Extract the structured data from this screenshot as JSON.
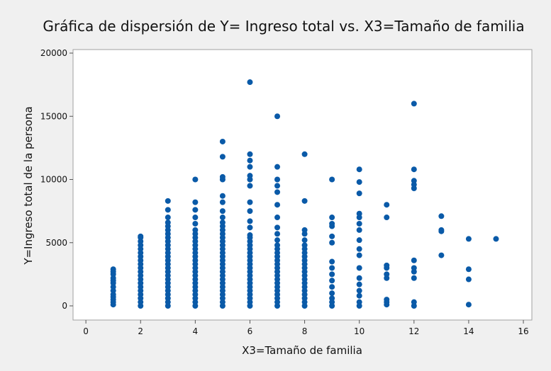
{
  "chart_data": {
    "type": "scatter",
    "title": "Gráfica de dispersión de Y= Ingreso total vs. X3=Tamaño de familia",
    "x_label": "X3=Tamaño de familia",
    "y_label": "Y=Ingreso total de la persona",
    "color": "#0a5aa8",
    "xlim": [
      -0.47,
      16.31
    ],
    "ylim": [
      -1120,
      20280
    ],
    "xticks": [
      0,
      2,
      4,
      6,
      8,
      10,
      12,
      14,
      16
    ],
    "yticks": [
      0,
      5000,
      10000,
      15000,
      20000
    ],
    "x": [
      1,
      1,
      1,
      1,
      1,
      1,
      1,
      1,
      1,
      1,
      1,
      1,
      1,
      2,
      2,
      2,
      2,
      2,
      2,
      2,
      2,
      2,
      2,
      2,
      2,
      2,
      2,
      2,
      2,
      2,
      2,
      2,
      2,
      3,
      3,
      3,
      3,
      3,
      3,
      3,
      3,
      3,
      3,
      3,
      3,
      3,
      3,
      3,
      3,
      3,
      3,
      3,
      3,
      3,
      3,
      3,
      3,
      3,
      3,
      4,
      4,
      4,
      4,
      4,
      4,
      4,
      4,
      4,
      4,
      4,
      4,
      4,
      4,
      4,
      4,
      4,
      4,
      4,
      4,
      4,
      4,
      4,
      4,
      4,
      4,
      5,
      5,
      5,
      5,
      5,
      5,
      5,
      5,
      5,
      5,
      5,
      5,
      5,
      5,
      5,
      5,
      5,
      5,
      5,
      5,
      5,
      5,
      5,
      5,
      5,
      5,
      5,
      5,
      5,
      5,
      5,
      6,
      6,
      6,
      6,
      6,
      6,
      6,
      6,
      6,
      6,
      6,
      6,
      6,
      6,
      6,
      6,
      6,
      6,
      6,
      6,
      6,
      6,
      6,
      6,
      6,
      6,
      6,
      6,
      6,
      6,
      6,
      7,
      7,
      7,
      7,
      7,
      7,
      7,
      7,
      7,
      7,
      7,
      7,
      7,
      7,
      7,
      7,
      7,
      7,
      7,
      7,
      7,
      7,
      7,
      7,
      7,
      7,
      7,
      8,
      8,
      8,
      8,
      8,
      8,
      8,
      8,
      8,
      8,
      8,
      8,
      8,
      8,
      8,
      8,
      8,
      8,
      8,
      8,
      8,
      8,
      9,
      9,
      9,
      9,
      9,
      9,
      9,
      9,
      9,
      9,
      9,
      9,
      9,
      9,
      9,
      10,
      10,
      10,
      10,
      10,
      10,
      10,
      10,
      10,
      10,
      10,
      10,
      10,
      10,
      10,
      10,
      10,
      11,
      11,
      11,
      11,
      11,
      11,
      11,
      11,
      11,
      12,
      12,
      12,
      12,
      12,
      12,
      12,
      12,
      12,
      12,
      12,
      13,
      13,
      13,
      13,
      14,
      14,
      14,
      14,
      15
    ],
    "y": [
      100,
      300,
      500,
      700,
      900,
      1200,
      1500,
      1800,
      2000,
      2200,
      2500,
      2700,
      2900,
      0,
      300,
      600,
      900,
      1200,
      1500,
      1800,
      2100,
      2400,
      2700,
      3000,
      3300,
      3600,
      3900,
      4200,
      4500,
      4800,
      5100,
      5400,
      5500,
      0,
      300,
      600,
      900,
      1200,
      1500,
      1800,
      2100,
      2400,
      2700,
      3000,
      3300,
      3600,
      3900,
      4200,
      4500,
      4800,
      5100,
      5400,
      5700,
      6000,
      6300,
      6600,
      7000,
      7600,
      8300,
      0,
      300,
      600,
      900,
      1200,
      1500,
      1800,
      2100,
      2400,
      2700,
      3000,
      3300,
      3600,
      3900,
      4200,
      4500,
      4800,
      5100,
      5400,
      5700,
      6000,
      6500,
      7000,
      7600,
      8200,
      10000,
      0,
      300,
      600,
      900,
      1200,
      1500,
      1800,
      2100,
      2400,
      2700,
      3000,
      3300,
      3600,
      3900,
      4200,
      4500,
      4800,
      5100,
      5400,
      5700,
      6000,
      6300,
      6600,
      7000,
      7500,
      8200,
      8700,
      10000,
      10200,
      11800,
      13000,
      0,
      300,
      600,
      900,
      1200,
      1500,
      1800,
      2100,
      2400,
      2700,
      3000,
      3300,
      3600,
      3900,
      4200,
      4500,
      4800,
      5100,
      5400,
      5600,
      6200,
      6700,
      7500,
      8200,
      9500,
      10000,
      10300,
      11000,
      11500,
      12000,
      17700,
      0,
      300,
      600,
      900,
      1200,
      1500,
      1800,
      2100,
      2400,
      2700,
      3000,
      3300,
      3600,
      3900,
      4200,
      4500,
      4800,
      5200,
      5700,
      6200,
      7000,
      8000,
      9000,
      9500,
      10000,
      11000,
      15000,
      0,
      300,
      600,
      900,
      1200,
      1500,
      1800,
      2100,
      2400,
      2700,
      3000,
      3300,
      3600,
      3900,
      4200,
      4500,
      4800,
      5200,
      5700,
      6000,
      8300,
      12000,
      0,
      300,
      600,
      1000,
      1500,
      2000,
      2500,
      3000,
      3500,
      5000,
      5500,
      6300,
      6500,
      7000,
      10000,
      0,
      300,
      800,
      1200,
      1700,
      2200,
      3000,
      4000,
      4500,
      5200,
      6000,
      6500,
      7000,
      7300,
      8900,
      9800,
      10800,
      100,
      300,
      500,
      2200,
      2500,
      3000,
      3200,
      7000,
      8000,
      0,
      300,
      2200,
      2700,
      3000,
      3600,
      9300,
      9600,
      9900,
      10800,
      16000,
      4000,
      5900,
      6000,
      7100,
      100,
      2100,
      2900,
      5300,
      5300
    ]
  }
}
